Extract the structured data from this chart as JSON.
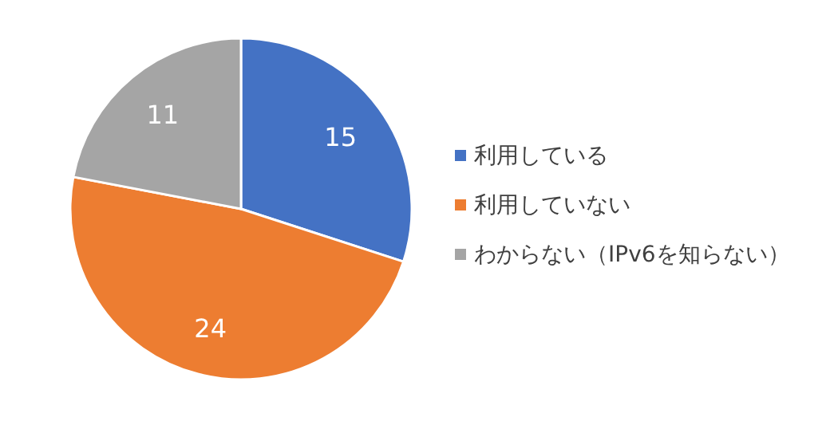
{
  "chart_data": {
    "type": "pie",
    "categories": [
      "利用している",
      "利用していない",
      "わからない（IPv6を知らない）"
    ],
    "values": [
      15,
      24,
      11
    ],
    "colors": [
      "#4472c4",
      "#ed7d31",
      "#a5a5a5"
    ],
    "data_labels": true,
    "legend": "right"
  }
}
